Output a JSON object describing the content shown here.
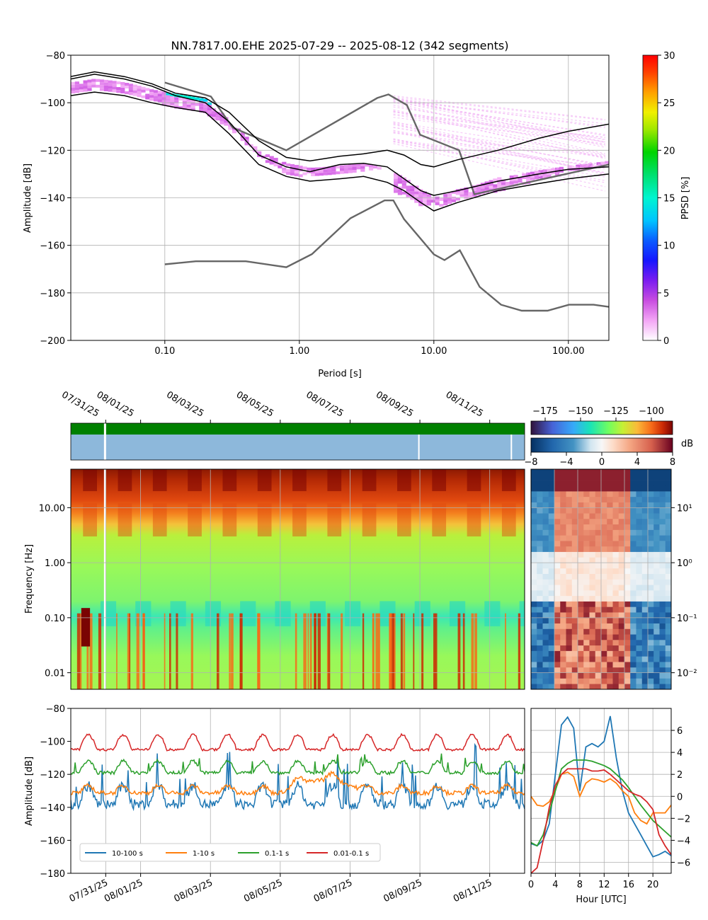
{
  "colors": {
    "nhnm_nlnm": "#666666",
    "percentile": "#000000",
    "gap_green": "#008000",
    "gap_blue": "#8db8db",
    "band_10_100": "#1f77b4",
    "band_1_10": "#ff7f0e",
    "band_01_1": "#2ca02c",
    "band_001_01": "#d62728"
  },
  "chart_data": [
    {
      "id": "ppsd",
      "type": "heatmap",
      "title": "NN.7817.00.EHE   2025-07-29 -- 2025-08-12  (342 segments)",
      "xlabel": "Period [s]",
      "ylabel": "Amplitude [dB]",
      "xscale": "log",
      "xlim": [
        0.02,
        200
      ],
      "ylim": [
        -200,
        -80
      ],
      "xticks": [
        0.1,
        1,
        10,
        100
      ],
      "xtick_labels": [
        "0.10",
        "1.00",
        "10.00",
        "100.00"
      ],
      "yticks": [
        -200,
        -180,
        -160,
        -140,
        -120,
        -100,
        -80
      ],
      "grid": true,
      "colorbar": {
        "label": "PPSD [%]",
        "range": [
          0,
          30
        ],
        "ticks": [
          0,
          5,
          10,
          15,
          20,
          25,
          30
        ]
      },
      "noise_models": [
        {
          "x": [
            0.1,
            0.17,
            0.4,
            0.8,
            1.24,
            2.4,
            4.3,
            5.0,
            6.0,
            10.0,
            12.0,
            15.6,
            21.9,
            31.6,
            45.0,
            70.0,
            101.0,
            154.0,
            200.0
          ],
          "y": [
            -168,
            -166.7,
            -166.7,
            -169.2,
            -163.7,
            -148.6,
            -141.1,
            -141.1,
            -149.0,
            -163.8,
            -166.2,
            -162.1,
            -177.5,
            -185.0,
            -187.5,
            -187.5,
            -185.0,
            -185.0,
            -185.9
          ]
        },
        {
          "x": [
            0.1,
            0.22,
            0.32,
            0.8,
            3.8,
            4.6,
            6.3,
            7.9,
            15.4,
            20.0,
            200.0
          ],
          "y": [
            -91.5,
            -97.4,
            -110.5,
            -120.0,
            -98.0,
            -96.5,
            -101.0,
            -113.5,
            -120.0,
            -138.5,
            -126.0
          ]
        }
      ],
      "percentiles": {
        "x": [
          0.02,
          0.03,
          0.05,
          0.08,
          0.12,
          0.2,
          0.3,
          0.5,
          0.8,
          1.2,
          2,
          3,
          4.5,
          6,
          8,
          10,
          15,
          30,
          60,
          100,
          200
        ],
        "median": [
          -90,
          -88,
          -90,
          -93,
          -97,
          -100,
          -108,
          -122,
          -127,
          -129,
          -126,
          -125.5,
          -127,
          -132,
          -137,
          -139,
          -137,
          -133,
          -130,
          -128,
          -127
        ],
        "upper": [
          -89,
          -87,
          -89,
          -92,
          -96,
          -98,
          -104,
          -116,
          -123,
          -124.5,
          -122.5,
          -121.5,
          -120,
          -122,
          -126,
          -127,
          -124,
          -120,
          -115,
          -112,
          -109
        ],
        "lower": [
          -97,
          -95.5,
          -97,
          -100,
          -102,
          -104,
          -113,
          -126,
          -131,
          -133,
          -132,
          -131,
          -133.5,
          -137,
          -142,
          -145.5,
          -142,
          -137,
          -134,
          -132,
          -130
        ]
      }
    },
    {
      "id": "spectrogram",
      "type": "heatmap",
      "ylabel": "Frequency [Hz]",
      "yscale": "log",
      "ylim": [
        0.005,
        50
      ],
      "xlim": [
        "2025-07-30",
        "2025-08-12"
      ],
      "yticks": [
        0.01,
        0.1,
        1,
        10
      ],
      "ytick_labels": [
        "0.01",
        "0.10",
        "1.00",
        "10.00"
      ],
      "date_ticks": [
        "07/31/25",
        "08/01/25",
        "08/03/25",
        "08/05/25",
        "08/07/25",
        "08/09/25",
        "08/11/25"
      ],
      "date_tick_days": [
        1.0,
        2.0,
        4.0,
        6.0,
        8.0,
        10.0,
        12.0
      ],
      "colorbar": {
        "range": [
          -185,
          -85
        ],
        "ticks": [
          -175,
          -150,
          -125,
          -100
        ]
      }
    },
    {
      "id": "diurnal",
      "type": "heatmap",
      "yscale": "log",
      "yticks": [
        0.01,
        0.1,
        1,
        10
      ],
      "ytick_labels": [
        "10⁻²",
        "10⁻¹",
        "10⁰",
        "10¹"
      ],
      "xlim": [
        0,
        24
      ],
      "colorbar": {
        "label": "dB",
        "range": [
          -8,
          8
        ],
        "ticks": [
          -8,
          -4,
          0,
          4,
          8
        ]
      }
    },
    {
      "id": "band_timeseries",
      "type": "line",
      "ylabel": "Amplitude [dB]",
      "ylim": [
        -180,
        -80
      ],
      "yticks": [
        -180,
        -160,
        -140,
        -120,
        -100,
        -80
      ],
      "legend": "bottom-left",
      "series": [
        {
          "name": "10-100 s",
          "color": "#1f77b4",
          "base": -135,
          "amplitude": 8
        },
        {
          "name": "1-10 s",
          "color": "#ff7f0e",
          "base": -130,
          "amplitude": 3
        },
        {
          "name": "0.1-1 s",
          "color": "#2ca02c",
          "base": -117,
          "amplitude": 5
        },
        {
          "name": "0.01-0.1 s",
          "color": "#d62728",
          "base": -101,
          "amplitude": 5
        }
      ]
    },
    {
      "id": "hourly",
      "type": "line",
      "xlabel": "Hour [UTC]",
      "xlim": [
        0,
        23
      ],
      "ylim": [
        -7,
        8
      ],
      "xticks": [
        0,
        4,
        8,
        12,
        16,
        20
      ],
      "yticks": [
        -6,
        -4,
        -2,
        0,
        2,
        4,
        6
      ],
      "series": [
        {
          "name": "10-100 s",
          "color": "#1f77b4",
          "x": [
            0,
            1,
            2,
            3,
            4,
            5,
            6,
            7,
            8,
            9,
            10,
            11,
            12,
            13,
            14,
            15,
            16,
            17,
            18,
            19,
            20,
            21,
            22,
            23
          ],
          "y": [
            -4.3,
            -4.5,
            -4.0,
            -2.5,
            2.0,
            6.5,
            7.2,
            6.2,
            0.5,
            4.5,
            4.8,
            4.5,
            5.0,
            7.3,
            3.5,
            0.5,
            -1.5,
            -2.5,
            -3.5,
            -4.5,
            -5.5,
            -5.3,
            -5.0,
            -5.4
          ]
        },
        {
          "name": "1-10 s",
          "color": "#ff7f0e",
          "x": [
            0,
            1,
            2,
            3,
            4,
            5,
            6,
            7,
            8,
            9,
            10,
            11,
            12,
            13,
            14,
            15,
            16,
            17,
            18,
            19,
            20,
            21,
            22,
            23
          ],
          "y": [
            0.0,
            -0.8,
            -0.9,
            -0.5,
            0.6,
            2.0,
            2.2,
            1.8,
            0.0,
            1.2,
            1.6,
            1.5,
            1.3,
            1.6,
            1.2,
            0.5,
            0.0,
            -1.5,
            -2.2,
            -2.5,
            -1.5,
            -1.5,
            -1.5,
            -0.8
          ]
        },
        {
          "name": "0.1-1 s",
          "color": "#2ca02c",
          "x": [
            0,
            1,
            2,
            3,
            4,
            5,
            6,
            7,
            8,
            9,
            10,
            11,
            12,
            13,
            14,
            15,
            16,
            17,
            18,
            19,
            20,
            21,
            22,
            23
          ],
          "y": [
            -4.2,
            -4.5,
            -3.5,
            -1.5,
            0.5,
            2.5,
            3.0,
            3.3,
            3.3,
            3.3,
            3.2,
            3.0,
            2.8,
            2.5,
            2.0,
            1.5,
            0.8,
            0.0,
            -0.8,
            -1.5,
            -2.2,
            -2.7,
            -3.2,
            -3.7
          ]
        },
        {
          "name": "0.01-0.1 s",
          "color": "#d62728",
          "x": [
            0,
            1,
            2,
            3,
            4,
            5,
            6,
            7,
            8,
            9,
            10,
            11,
            12,
            13,
            14,
            15,
            16,
            17,
            18,
            19,
            20,
            21,
            22,
            23
          ],
          "y": [
            -7.0,
            -6.5,
            -4.0,
            -1.0,
            1.0,
            2.0,
            2.5,
            2.5,
            2.5,
            2.5,
            2.3,
            2.3,
            2.4,
            2.0,
            1.5,
            1.0,
            0.5,
            0.2,
            0.0,
            -0.5,
            -1.2,
            -3.5,
            -4.5,
            -5.3
          ]
        }
      ]
    }
  ]
}
